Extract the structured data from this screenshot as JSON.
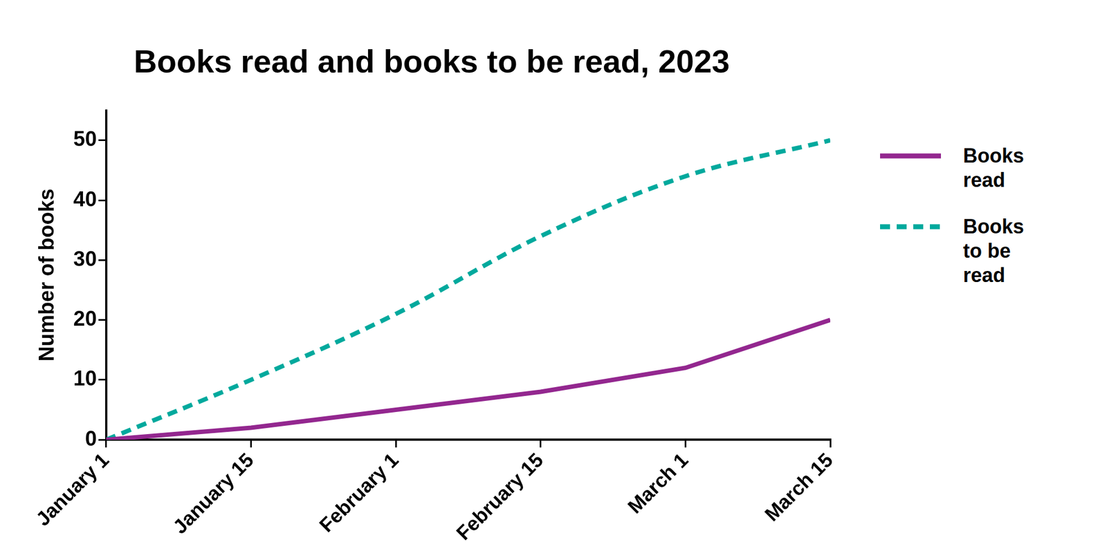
{
  "chart_data": {
    "type": "line",
    "title": "Books read and books to be read, 2023",
    "y_label": "Number of books",
    "categories": [
      "January 1",
      "January 15",
      "February 1",
      "February 15",
      "March 1",
      "March 15"
    ],
    "series": [
      {
        "name": "Books read",
        "color": "#93278f",
        "line_style": "solid",
        "values": [
          0,
          2,
          5,
          8,
          12,
          20
        ]
      },
      {
        "name": "Books to be read",
        "color": "#00a99d",
        "line_style": "dashed",
        "values": [
          0,
          10,
          21,
          34,
          44,
          50
        ]
      }
    ],
    "ylim": [
      0,
      55
    ],
    "yticks": [
      0,
      10,
      20,
      30,
      40,
      50
    ],
    "grid": false,
    "legend": "right"
  }
}
